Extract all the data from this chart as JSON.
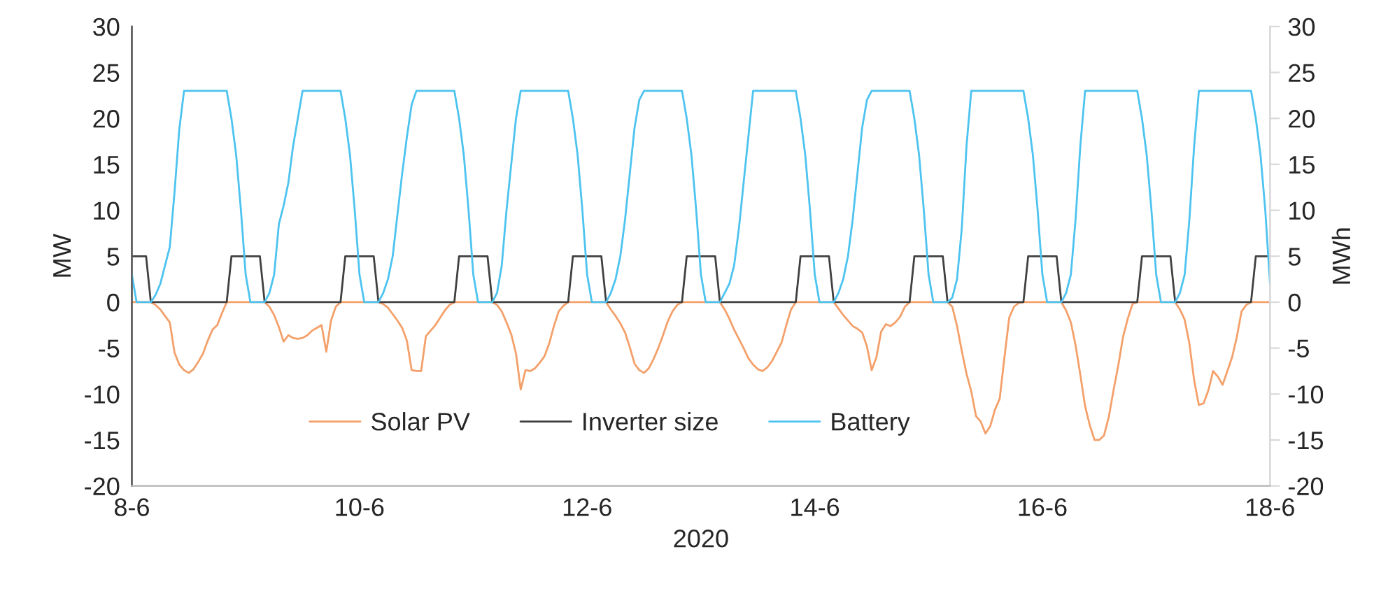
{
  "chart_data": {
    "type": "line",
    "xlabel": "2020",
    "ylabel": "MW",
    "y2label": "MWh",
    "xlim": [
      "2020-06-08T00:00",
      "2020-06-18T00:00"
    ],
    "xticks": [
      {
        "value": "2020-06-08",
        "label": "8-6"
      },
      {
        "value": "2020-06-10",
        "label": "10-6"
      },
      {
        "value": "2020-06-12",
        "label": "12-6"
      },
      {
        "value": "2020-06-14",
        "label": "14-6"
      },
      {
        "value": "2020-06-16",
        "label": "16-6"
      },
      {
        "value": "2020-06-18",
        "label": "18-6"
      }
    ],
    "ylim": [
      -20,
      30
    ],
    "yticks": [
      -20,
      -15,
      -10,
      -5,
      0,
      5,
      10,
      15,
      20,
      25,
      30
    ],
    "y2lim": [
      -20,
      30
    ],
    "y2ticks": [
      -20,
      -15,
      -10,
      -5,
      0,
      5,
      10,
      15,
      20,
      25,
      30
    ],
    "legend": "bottom",
    "series": [
      {
        "name": "Solar PV",
        "color": "#f4a06a",
        "x": [
          "2020-06-08T00:00",
          "2020-06-08T04:00",
          "2020-06-08T05:00",
          "2020-06-08T06:00",
          "2020-06-08T07:00",
          "2020-06-08T08:00",
          "2020-06-08T09:00",
          "2020-06-08T10:00",
          "2020-06-08T11:00",
          "2020-06-08T12:00",
          "2020-06-08T13:00",
          "2020-06-08T14:00",
          "2020-06-08T15:00",
          "2020-06-08T16:00",
          "2020-06-08T17:00",
          "2020-06-08T18:00",
          "2020-06-08T19:00",
          "2020-06-08T20:00",
          "2020-06-09T04:00",
          "2020-06-09T05:00",
          "2020-06-09T06:00",
          "2020-06-09T07:00",
          "2020-06-09T08:00",
          "2020-06-09T09:00",
          "2020-06-09T10:00",
          "2020-06-09T11:00",
          "2020-06-09T12:00",
          "2020-06-09T13:00",
          "2020-06-09T14:00",
          "2020-06-09T15:00",
          "2020-06-09T16:00",
          "2020-06-09T17:00",
          "2020-06-09T18:00",
          "2020-06-09T19:00",
          "2020-06-09T20:00",
          "2020-06-10T04:00",
          "2020-06-10T05:00",
          "2020-06-10T06:00",
          "2020-06-10T07:00",
          "2020-06-10T08:00",
          "2020-06-10T09:00",
          "2020-06-10T10:00",
          "2020-06-10T11:00",
          "2020-06-10T12:00",
          "2020-06-10T13:00",
          "2020-06-10T14:00",
          "2020-06-10T15:00",
          "2020-06-10T16:00",
          "2020-06-10T17:00",
          "2020-06-10T18:00",
          "2020-06-10T19:00",
          "2020-06-10T20:00",
          "2020-06-11T04:00",
          "2020-06-11T05:00",
          "2020-06-11T06:00",
          "2020-06-11T07:00",
          "2020-06-11T08:00",
          "2020-06-11T09:00",
          "2020-06-11T10:00",
          "2020-06-11T11:00",
          "2020-06-11T12:00",
          "2020-06-11T13:00",
          "2020-06-11T14:00",
          "2020-06-11T15:00",
          "2020-06-11T16:00",
          "2020-06-11T17:00",
          "2020-06-11T18:00",
          "2020-06-11T19:00",
          "2020-06-11T20:00",
          "2020-06-12T04:00",
          "2020-06-12T05:00",
          "2020-06-12T06:00",
          "2020-06-12T07:00",
          "2020-06-12T08:00",
          "2020-06-12T09:00",
          "2020-06-12T10:00",
          "2020-06-12T11:00",
          "2020-06-12T12:00",
          "2020-06-12T13:00",
          "2020-06-12T14:00",
          "2020-06-12T15:00",
          "2020-06-12T16:00",
          "2020-06-12T17:00",
          "2020-06-12T18:00",
          "2020-06-12T19:00",
          "2020-06-12T20:00",
          "2020-06-13T04:00",
          "2020-06-13T05:00",
          "2020-06-13T06:00",
          "2020-06-13T07:00",
          "2020-06-13T08:00",
          "2020-06-13T09:00",
          "2020-06-13T10:00",
          "2020-06-13T11:00",
          "2020-06-13T12:00",
          "2020-06-13T13:00",
          "2020-06-13T14:00",
          "2020-06-13T15:00",
          "2020-06-13T16:00",
          "2020-06-13T17:00",
          "2020-06-13T18:00",
          "2020-06-13T19:00",
          "2020-06-13T20:00",
          "2020-06-14T04:00",
          "2020-06-14T05:00",
          "2020-06-14T06:00",
          "2020-06-14T07:00",
          "2020-06-14T08:00",
          "2020-06-14T09:00",
          "2020-06-14T10:00",
          "2020-06-14T11:00",
          "2020-06-14T12:00",
          "2020-06-14T13:00",
          "2020-06-14T14:00",
          "2020-06-14T15:00",
          "2020-06-14T16:00",
          "2020-06-14T17:00",
          "2020-06-14T18:00",
          "2020-06-14T19:00",
          "2020-06-14T20:00",
          "2020-06-15T04:00",
          "2020-06-15T05:00",
          "2020-06-15T06:00",
          "2020-06-15T07:00",
          "2020-06-15T08:00",
          "2020-06-15T09:00",
          "2020-06-15T10:00",
          "2020-06-15T11:00",
          "2020-06-15T12:00",
          "2020-06-15T13:00",
          "2020-06-15T14:00",
          "2020-06-15T15:00",
          "2020-06-15T16:00",
          "2020-06-15T17:00",
          "2020-06-15T18:00",
          "2020-06-15T19:00",
          "2020-06-15T20:00",
          "2020-06-16T04:00",
          "2020-06-16T05:00",
          "2020-06-16T06:00",
          "2020-06-16T07:00",
          "2020-06-16T08:00",
          "2020-06-16T09:00",
          "2020-06-16T10:00",
          "2020-06-16T11:00",
          "2020-06-16T12:00",
          "2020-06-16T13:00",
          "2020-06-16T14:00",
          "2020-06-16T15:00",
          "2020-06-16T16:00",
          "2020-06-16T17:00",
          "2020-06-16T18:00",
          "2020-06-16T19:00",
          "2020-06-16T20:00",
          "2020-06-17T04:00",
          "2020-06-17T05:00",
          "2020-06-17T06:00",
          "2020-06-17T07:00",
          "2020-06-17T08:00",
          "2020-06-17T09:00",
          "2020-06-17T10:00",
          "2020-06-17T11:00",
          "2020-06-17T12:00",
          "2020-06-17T13:00",
          "2020-06-17T14:00",
          "2020-06-17T15:00",
          "2020-06-17T16:00",
          "2020-06-17T17:00",
          "2020-06-17T18:00",
          "2020-06-17T19:00",
          "2020-06-17T20:00",
          "2020-06-18T00:00"
        ],
        "values": [
          0,
          0,
          -0.3,
          -0.8,
          -1.5,
          -2.2,
          -5.5,
          -6.8,
          -7.4,
          -7.7,
          -7.3,
          -6.5,
          -5.6,
          -4.2,
          -3,
          -2.5,
          -1.2,
          0,
          0,
          -0.5,
          -1.4,
          -2.7,
          -4.3,
          -3.6,
          -3.9,
          -4,
          -3.9,
          -3.6,
          -3.1,
          -2.8,
          -2.5,
          -5.4,
          -2,
          -0.5,
          0,
          0,
          -0.2,
          -0.6,
          -1.3,
          -2,
          -2.8,
          -4.2,
          -7.4,
          -7.5,
          -7.5,
          -3.7,
          -3.1,
          -2.5,
          -1.7,
          -0.9,
          -0.3,
          0,
          0,
          -0.3,
          -1,
          -2.2,
          -3.5,
          -5.6,
          -9.5,
          -7.4,
          -7.5,
          -7.2,
          -6.6,
          -5.9,
          -4.5,
          -2.6,
          -1,
          -0.4,
          0,
          0,
          -0.8,
          -1.5,
          -2.3,
          -3.3,
          -4.9,
          -6.7,
          -7.4,
          -7.7,
          -7.2,
          -6.2,
          -5,
          -3.6,
          -2.1,
          -1,
          -0.3,
          0,
          0,
          -0.8,
          -1.8,
          -3,
          -4,
          -5,
          -6.1,
          -6.8,
          -7.3,
          -7.5,
          -7.1,
          -6.4,
          -5.4,
          -4.4,
          -2.5,
          -0.8,
          0,
          0,
          -0.7,
          -1.4,
          -2,
          -2.6,
          -2.9,
          -3.3,
          -4.8,
          -7.4,
          -6,
          -3.2,
          -2.4,
          -2.6,
          -2.2,
          -1.6,
          -0.5,
          0,
          0,
          -0.5,
          -2.6,
          -5.3,
          -7.8,
          -9.7,
          -12.4,
          -13,
          -14.3,
          -13.5,
          -11.7,
          -10.5,
          -6,
          -1.7,
          -0.5,
          -0.1,
          0,
          0,
          -0.9,
          -2.2,
          -4.7,
          -7.9,
          -11.3,
          -13.4,
          -15,
          -15,
          -14.5,
          -12.5,
          -9.6,
          -6.9,
          -3.8,
          -1.8,
          -0.2,
          0,
          0,
          -0.8,
          -1.9,
          -4.5,
          -8.5,
          -11.2,
          -11,
          -9.6,
          -7.5,
          -8.1,
          -9,
          -7.5,
          -6,
          -3.8,
          -1,
          -0.3,
          0,
          0
        ]
      },
      {
        "name": "Inverter size",
        "color": "#404040",
        "x": [
          "2020-06-08T00:00",
          "2020-06-08T03:00",
          "2020-06-08T04:00",
          "2020-06-08T20:00",
          "2020-06-08T21:00",
          "2020-06-09T03:00",
          "2020-06-09T04:00",
          "2020-06-09T20:00",
          "2020-06-09T21:00",
          "2020-06-10T03:00",
          "2020-06-10T04:00",
          "2020-06-10T20:00",
          "2020-06-10T21:00",
          "2020-06-11T03:00",
          "2020-06-11T04:00",
          "2020-06-11T20:00",
          "2020-06-11T21:00",
          "2020-06-12T03:00",
          "2020-06-12T04:00",
          "2020-06-12T20:00",
          "2020-06-12T21:00",
          "2020-06-13T03:00",
          "2020-06-13T04:00",
          "2020-06-13T20:00",
          "2020-06-13T21:00",
          "2020-06-14T03:00",
          "2020-06-14T04:00",
          "2020-06-14T20:00",
          "2020-06-14T21:00",
          "2020-06-15T03:00",
          "2020-06-15T04:00",
          "2020-06-15T20:00",
          "2020-06-15T21:00",
          "2020-06-16T03:00",
          "2020-06-16T04:00",
          "2020-06-16T20:00",
          "2020-06-16T21:00",
          "2020-06-17T03:00",
          "2020-06-17T04:00",
          "2020-06-17T20:00",
          "2020-06-17T21:00",
          "2020-06-18T00:00"
        ],
        "values": [
          5,
          5,
          0,
          0,
          5,
          5,
          0,
          0,
          5,
          5,
          0,
          0,
          5,
          5,
          0,
          0,
          5,
          5,
          0,
          0,
          5,
          5,
          0,
          0,
          5,
          5,
          0,
          0,
          5,
          5,
          0,
          0,
          5,
          5,
          0,
          0,
          5,
          5,
          0,
          0,
          5,
          5
        ]
      },
      {
        "name": "Battery",
        "color": "#4dc3f0",
        "axis": "y2",
        "x": [
          "2020-06-08T00:00",
          "2020-06-08T01:00",
          "2020-06-08T04:00",
          "2020-06-08T05:00",
          "2020-06-08T06:00",
          "2020-06-08T07:00",
          "2020-06-08T08:00",
          "2020-06-08T09:00",
          "2020-06-08T10:00",
          "2020-06-08T11:00",
          "2020-06-08T20:00",
          "2020-06-08T21:00",
          "2020-06-08T22:00",
          "2020-06-08T23:00",
          "2020-06-09T00:00",
          "2020-06-09T01:00",
          "2020-06-09T04:00",
          "2020-06-09T05:00",
          "2020-06-09T06:00",
          "2020-06-09T07:00",
          "2020-06-09T08:00",
          "2020-06-09T09:00",
          "2020-06-09T10:00",
          "2020-06-09T11:00",
          "2020-06-09T12:00",
          "2020-06-09T20:00",
          "2020-06-09T21:00",
          "2020-06-09T22:00",
          "2020-06-09T23:00",
          "2020-06-10T00:00",
          "2020-06-10T01:00",
          "2020-06-10T04:00",
          "2020-06-10T05:00",
          "2020-06-10T06:00",
          "2020-06-10T07:00",
          "2020-06-10T08:00",
          "2020-06-10T09:00",
          "2020-06-10T10:00",
          "2020-06-10T11:00",
          "2020-06-10T12:00",
          "2020-06-10T20:00",
          "2020-06-10T21:00",
          "2020-06-10T22:00",
          "2020-06-10T23:00",
          "2020-06-11T00:00",
          "2020-06-11T01:00",
          "2020-06-11T04:00",
          "2020-06-11T05:00",
          "2020-06-11T06:00",
          "2020-06-11T07:00",
          "2020-06-11T08:00",
          "2020-06-11T09:00",
          "2020-06-11T10:00",
          "2020-06-11T20:00",
          "2020-06-11T21:00",
          "2020-06-11T22:00",
          "2020-06-11T23:00",
          "2020-06-12T00:00",
          "2020-06-12T01:00",
          "2020-06-12T04:00",
          "2020-06-12T05:00",
          "2020-06-12T06:00",
          "2020-06-12T07:00",
          "2020-06-12T08:00",
          "2020-06-12T09:00",
          "2020-06-12T10:00",
          "2020-06-12T11:00",
          "2020-06-12T12:00",
          "2020-06-12T20:00",
          "2020-06-12T21:00",
          "2020-06-12T22:00",
          "2020-06-12T23:00",
          "2020-06-13T00:00",
          "2020-06-13T01:00",
          "2020-06-13T04:00",
          "2020-06-13T05:00",
          "2020-06-13T06:00",
          "2020-06-13T07:00",
          "2020-06-13T08:00",
          "2020-06-13T09:00",
          "2020-06-13T10:00",
          "2020-06-13T11:00",
          "2020-06-13T20:00",
          "2020-06-13T21:00",
          "2020-06-13T22:00",
          "2020-06-13T23:00",
          "2020-06-14T00:00",
          "2020-06-14T01:00",
          "2020-06-14T04:00",
          "2020-06-14T05:00",
          "2020-06-14T06:00",
          "2020-06-14T07:00",
          "2020-06-14T08:00",
          "2020-06-14T09:00",
          "2020-06-14T10:00",
          "2020-06-14T11:00",
          "2020-06-14T12:00",
          "2020-06-14T20:00",
          "2020-06-14T21:00",
          "2020-06-14T22:00",
          "2020-06-14T23:00",
          "2020-06-15T00:00",
          "2020-06-15T01:00",
          "2020-06-15T04:00",
          "2020-06-15T05:00",
          "2020-06-15T06:00",
          "2020-06-15T07:00",
          "2020-06-15T08:00",
          "2020-06-15T09:00",
          "2020-06-15T20:00",
          "2020-06-15T21:00",
          "2020-06-15T22:00",
          "2020-06-15T23:00",
          "2020-06-16T00:00",
          "2020-06-16T01:00",
          "2020-06-16T04:00",
          "2020-06-16T05:00",
          "2020-06-16T06:00",
          "2020-06-16T07:00",
          "2020-06-16T08:00",
          "2020-06-16T09:00",
          "2020-06-16T20:00",
          "2020-06-16T21:00",
          "2020-06-16T22:00",
          "2020-06-16T23:00",
          "2020-06-17T00:00",
          "2020-06-17T01:00",
          "2020-06-17T04:00",
          "2020-06-17T05:00",
          "2020-06-17T06:00",
          "2020-06-17T07:00",
          "2020-06-17T08:00",
          "2020-06-17T09:00",
          "2020-06-17T20:00",
          "2020-06-17T21:00",
          "2020-06-17T22:00",
          "2020-06-17T23:00",
          "2020-06-18T00:00"
        ],
        "values": [
          3,
          0,
          0,
          0.8,
          2,
          4,
          6,
          12,
          18.8,
          23,
          23,
          20,
          16,
          10,
          3,
          0,
          0,
          1,
          3,
          8.5,
          10.5,
          13,
          17,
          20,
          23,
          23,
          20,
          16,
          10,
          3,
          0,
          0,
          1,
          2.5,
          5,
          9.5,
          14,
          18,
          21.5,
          23,
          23,
          20,
          16,
          10,
          3,
          0,
          0,
          1,
          4,
          10,
          15,
          20,
          23,
          23,
          20,
          16,
          10,
          3,
          0,
          0,
          1,
          2.5,
          5,
          9,
          14,
          19,
          22,
          23,
          23,
          20,
          16,
          10,
          3,
          0,
          0,
          1,
          2,
          4,
          8,
          13,
          18,
          23,
          23,
          20,
          16,
          10,
          3,
          0,
          0,
          1,
          2.5,
          5,
          9,
          14,
          19,
          22,
          23,
          23,
          20,
          16,
          10,
          3,
          0,
          0,
          0.5,
          2.5,
          8,
          17,
          23,
          23,
          20,
          16,
          10,
          3,
          0,
          0,
          1,
          3,
          9,
          17,
          23,
          23,
          20,
          16,
          10,
          3,
          0,
          0,
          1,
          3,
          9,
          17,
          23,
          23,
          20,
          16,
          10,
          2
        ]
      }
    ]
  }
}
